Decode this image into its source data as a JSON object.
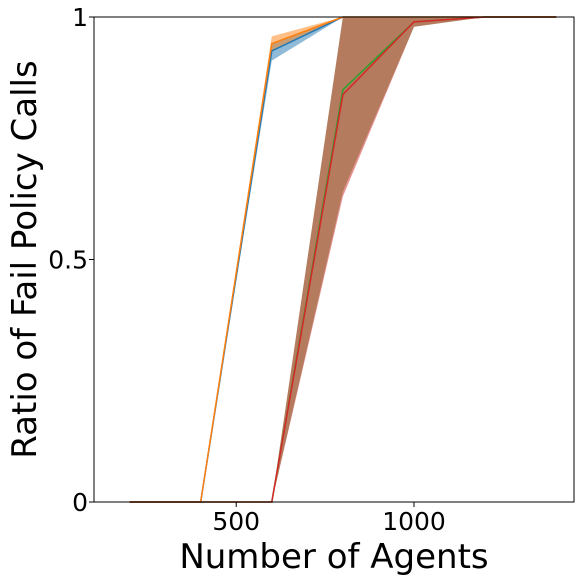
{
  "chart_data": {
    "type": "line",
    "title": "",
    "xlabel": "Number of Agents",
    "ylabel": "Ratio of Fail Policy Calls",
    "xlim": [
      100,
      1450
    ],
    "ylim": [
      0,
      1
    ],
    "xticks": [
      500,
      1000
    ],
    "xtick_labels": [
      "500",
      "1000"
    ],
    "yticks": [
      0,
      0.5,
      1
    ],
    "ytick_labels": [
      "0",
      "0.5",
      "1"
    ],
    "grid": false,
    "legend": "none",
    "series": [
      {
        "color": "#1f77b4",
        "x": [
          200,
          400,
          600,
          800,
          1000,
          1200,
          1400
        ],
        "y": [
          0,
          0,
          0.93,
          1.0,
          1.0,
          1.0,
          1.0
        ],
        "lower": [
          0,
          0,
          0.91,
          1.0,
          1.0,
          1.0,
          1.0
        ],
        "upper": [
          0,
          0,
          0.945,
          1.0,
          1.0,
          1.0,
          1.0
        ]
      },
      {
        "color": "#ff7f0e",
        "x": [
          200,
          400,
          600,
          800,
          1000,
          1200,
          1400
        ],
        "y": [
          0,
          0,
          0.945,
          1.0,
          1.0,
          1.0,
          1.0
        ],
        "lower": [
          0,
          0,
          0.93,
          1.0,
          1.0,
          1.0,
          1.0
        ],
        "upper": [
          0,
          0,
          0.96,
          1.0,
          1.0,
          1.0,
          1.0
        ]
      },
      {
        "color": "#2ca02c",
        "x": [
          200,
          400,
          600,
          800,
          1000,
          1200,
          1400
        ],
        "y": [
          0,
          0,
          0,
          0.85,
          0.99,
          1.0,
          1.0
        ],
        "lower": [
          0,
          0,
          0,
          0.64,
          0.98,
          1.0,
          1.0
        ],
        "upper": [
          0,
          0,
          0,
          1.0,
          1.0,
          1.0,
          1.0
        ]
      },
      {
        "color": "#d62728",
        "x": [
          200,
          400,
          600,
          800,
          1000,
          1200,
          1400
        ],
        "y": [
          0,
          0,
          0,
          0.84,
          0.99,
          1.0,
          1.0
        ],
        "lower": [
          0,
          0,
          0,
          0.63,
          0.98,
          1.0,
          1.0
        ],
        "upper": [
          0,
          0,
          0,
          1.0,
          1.0,
          1.0,
          1.0
        ]
      }
    ]
  }
}
